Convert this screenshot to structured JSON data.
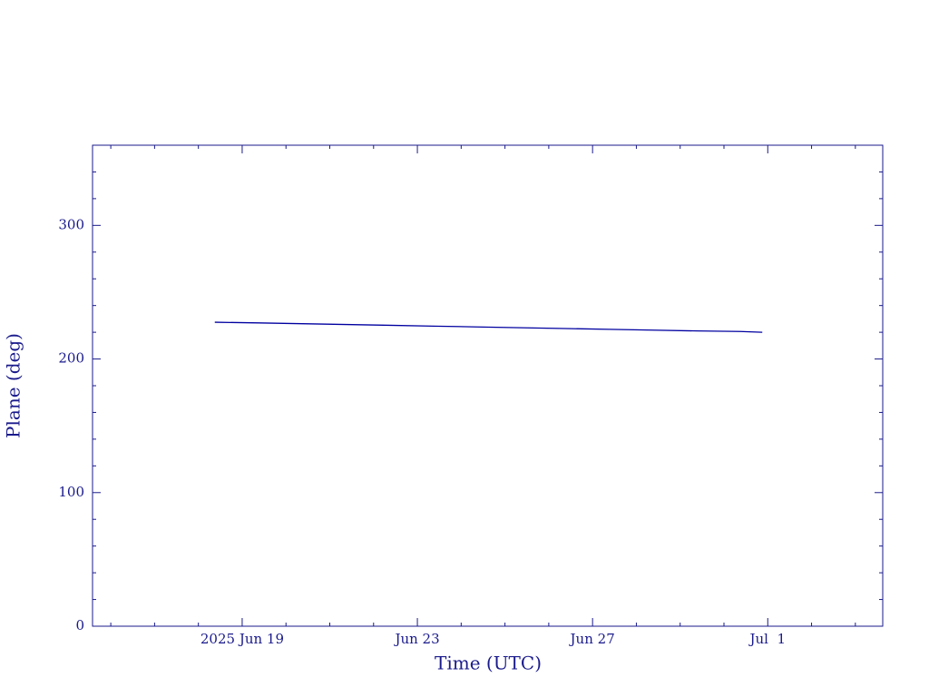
{
  "chart_data": {
    "type": "line",
    "xlabel": "Time (UTC)",
    "ylabel": "Plane (deg)",
    "color": "#0000a0",
    "x": [
      "2025-06-18T09:00",
      "2025-06-19T09:00",
      "2025-06-20T09:00",
      "2025-06-21T09:00",
      "2025-06-22T09:00",
      "2025-06-23T09:00",
      "2025-06-24T09:00",
      "2025-06-25T09:00",
      "2025-06-26T09:00",
      "2025-06-27T09:00",
      "2025-06-28T09:00",
      "2025-06-29T09:00",
      "2025-06-30T09:00",
      "2025-06-30T21:00"
    ],
    "values": [
      227.5,
      227,
      226.4,
      225.8,
      225.2,
      224.6,
      224,
      223.4,
      222.8,
      222.2,
      221.6,
      221.0,
      220.6,
      220.0
    ],
    "xlim": [
      "2025-06-15T14:00",
      "2025-07-03T15:00"
    ],
    "xticks": [
      {
        "value": "2025-06-19",
        "label": "2025 Jun 19"
      },
      {
        "value": "2025-06-23",
        "label": "Jun 23"
      },
      {
        "value": "2025-06-27",
        "label": "Jun 27"
      },
      {
        "value": "2025-07-01",
        "label": "Jul  1"
      }
    ],
    "xminorticks": [
      "2025-06-16",
      "2025-06-17",
      "2025-06-18",
      "2025-06-20",
      "2025-06-21",
      "2025-06-22",
      "2025-06-24",
      "2025-06-25",
      "2025-06-26",
      "2025-06-28",
      "2025-06-29",
      "2025-06-30",
      "2025-07-02",
      "2025-07-03"
    ],
    "ylim": [
      0,
      360
    ],
    "yticks": [
      0,
      100,
      200,
      300
    ],
    "yminorticks": [
      20,
      40,
      60,
      80,
      120,
      140,
      160,
      180,
      220,
      240,
      260,
      280,
      320,
      340
    ],
    "grid": false
  }
}
